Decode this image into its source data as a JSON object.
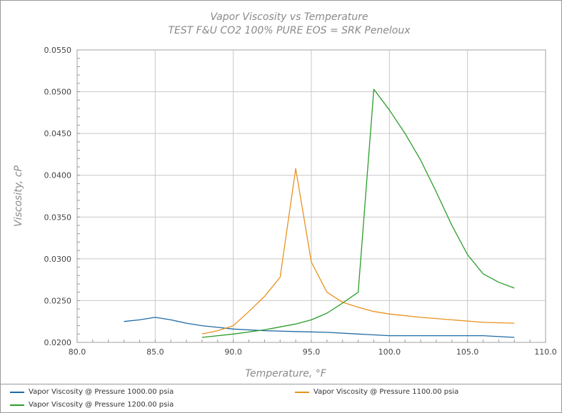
{
  "chart_data": {
    "type": "line",
    "title": "Vapor Viscosity vs Temperature",
    "subtitle": "TEST F&U CO2 100% PURE EOS = SRK Peneloux",
    "xlabel": "Temperature, °F",
    "ylabel": "Viscosity, cP",
    "xlim": [
      80.0,
      110.0
    ],
    "ylim": [
      0.02,
      0.055
    ],
    "xticks": [
      "80.0",
      "85.0",
      "90.0",
      "95.0",
      "100.0",
      "105.0",
      "110.0"
    ],
    "yticks": [
      "0.0200",
      "0.0250",
      "0.0300",
      "0.0350",
      "0.0400",
      "0.0450",
      "0.0500",
      "0.0550"
    ],
    "grid": true,
    "legend_position": "bottom",
    "series": [
      {
        "name": "Vapor Viscosity @ Pressure 1000.00 psia",
        "color": "#1f6aa5",
        "x": [
          83,
          84,
          85,
          86,
          87,
          88,
          89,
          90,
          92,
          94,
          96,
          98,
          100,
          102,
          104,
          106,
          108
        ],
        "y": [
          0.0225,
          0.0227,
          0.023,
          0.0227,
          0.0223,
          0.022,
          0.0218,
          0.0216,
          0.0214,
          0.0213,
          0.0212,
          0.021,
          0.0208,
          0.0208,
          0.0208,
          0.0208,
          0.0206
        ]
      },
      {
        "name": "Vapor Viscosity @ Pressure 1100.00 psia",
        "color": "#e8921f",
        "x": [
          88,
          89,
          90,
          91,
          92,
          93,
          94,
          95,
          96,
          97,
          98,
          99,
          100,
          102,
          104,
          106,
          108
        ],
        "y": [
          0.021,
          0.0214,
          0.022,
          0.0237,
          0.0255,
          0.0278,
          0.0408,
          0.0296,
          0.026,
          0.0248,
          0.0242,
          0.0237,
          0.0234,
          0.023,
          0.0227,
          0.0224,
          0.0223
        ]
      },
      {
        "name": "Vapor Viscosity @ Pressure 1200.00 psia",
        "color": "#2a9d2a",
        "x": [
          88,
          90,
          92,
          94,
          95,
          96,
          97,
          98,
          99,
          100,
          101,
          102,
          103,
          104,
          105,
          106,
          107,
          108
        ],
        "y": [
          0.0206,
          0.021,
          0.0215,
          0.0222,
          0.0227,
          0.0235,
          0.0247,
          0.026,
          0.0503,
          0.0478,
          0.045,
          0.0418,
          0.038,
          0.034,
          0.0305,
          0.0282,
          0.0272,
          0.0265
        ]
      }
    ]
  }
}
